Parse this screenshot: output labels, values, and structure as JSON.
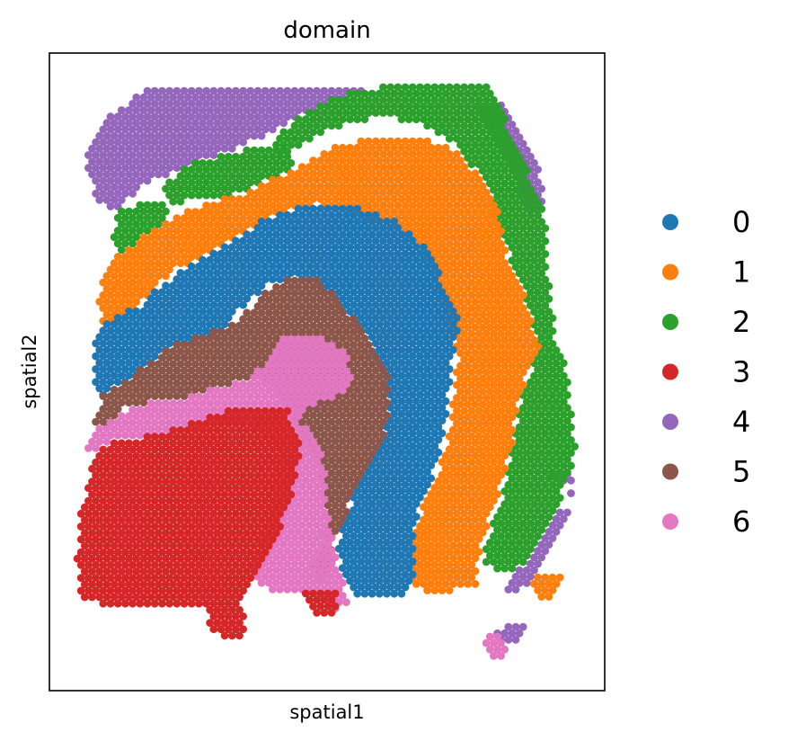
{
  "chart_data": {
    "type": "scatter",
    "title": "domain",
    "xlabel": "spatial1",
    "ylabel": "spatial2",
    "grid": false,
    "ticks": false,
    "legend_placement": "right",
    "series": [
      {
        "name": "0",
        "color": "#1f77b4"
      },
      {
        "name": "1",
        "color": "#ff7f0e"
      },
      {
        "name": "2",
        "color": "#2ca02c"
      },
      {
        "name": "3",
        "color": "#d62728"
      },
      {
        "name": "4",
        "color": "#9467bd"
      },
      {
        "name": "5",
        "color": "#8c564b"
      },
      {
        "name": "6",
        "color": "#e377c2"
      }
    ]
  }
}
